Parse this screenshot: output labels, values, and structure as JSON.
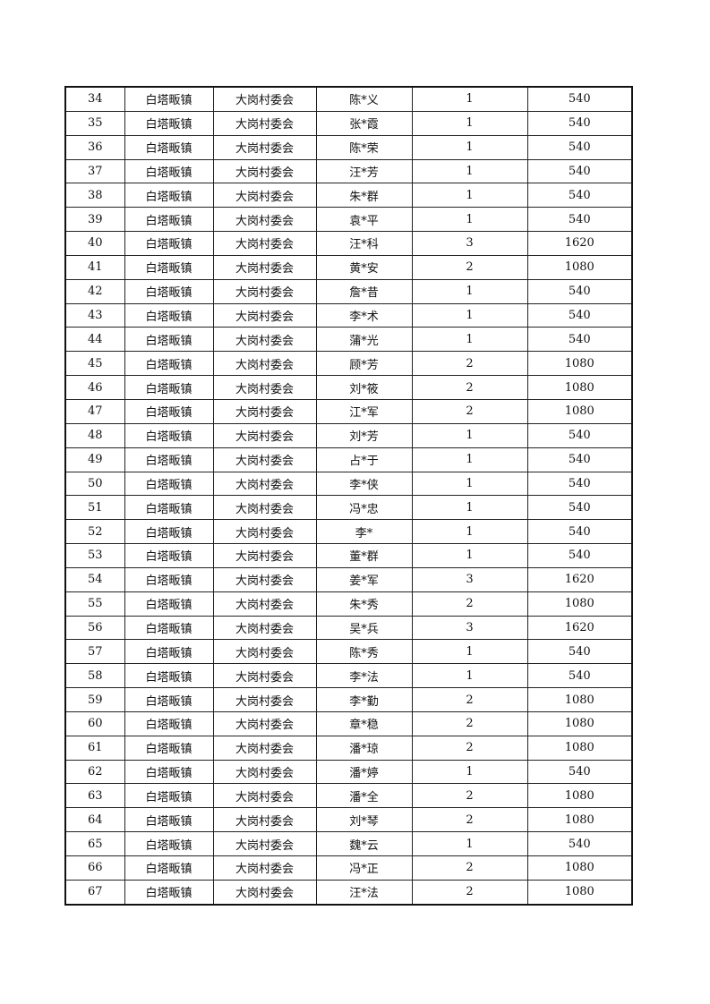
{
  "table": {
    "rows": [
      [
        "34",
        "白塔畈镇",
        "大岗村委会",
        "陈*义",
        "1",
        "540"
      ],
      [
        "35",
        "白塔畈镇",
        "大岗村委会",
        "张*霞",
        "1",
        "540"
      ],
      [
        "36",
        "白塔畈镇",
        "大岗村委会",
        "陈*荣",
        "1",
        "540"
      ],
      [
        "37",
        "白塔畈镇",
        "大岗村委会",
        "汪*芳",
        "1",
        "540"
      ],
      [
        "38",
        "白塔畈镇",
        "大岗村委会",
        "朱*群",
        "1",
        "540"
      ],
      [
        "39",
        "白塔畈镇",
        "大岗村委会",
        "袁*平",
        "1",
        "540"
      ],
      [
        "40",
        "白塔畈镇",
        "大岗村委会",
        "汪*科",
        "3",
        "1620"
      ],
      [
        "41",
        "白塔畈镇",
        "大岗村委会",
        "黄*安",
        "2",
        "1080"
      ],
      [
        "42",
        "白塔畈镇",
        "大岗村委会",
        "詹*昔",
        "1",
        "540"
      ],
      [
        "43",
        "白塔畈镇",
        "大岗村委会",
        "李*术",
        "1",
        "540"
      ],
      [
        "44",
        "白塔畈镇",
        "大岗村委会",
        "蒲*光",
        "1",
        "540"
      ],
      [
        "45",
        "白塔畈镇",
        "大岗村委会",
        "顾*芳",
        "2",
        "1080"
      ],
      [
        "46",
        "白塔畈镇",
        "大岗村委会",
        "刘*筱",
        "2",
        "1080"
      ],
      [
        "47",
        "白塔畈镇",
        "大岗村委会",
        "江*军",
        "2",
        "1080"
      ],
      [
        "48",
        "白塔畈镇",
        "大岗村委会",
        "刘*芳",
        "1",
        "540"
      ],
      [
        "49",
        "白塔畈镇",
        "大岗村委会",
        "占*于",
        "1",
        "540"
      ],
      [
        "50",
        "白塔畈镇",
        "大岗村委会",
        "李*侠",
        "1",
        "540"
      ],
      [
        "51",
        "白塔畈镇",
        "大岗村委会",
        "冯*忠",
        "1",
        "540"
      ],
      [
        "52",
        "白塔畈镇",
        "大岗村委会",
        "李*",
        "1",
        "540"
      ],
      [
        "53",
        "白塔畈镇",
        "大岗村委会",
        "董*群",
        "1",
        "540"
      ],
      [
        "54",
        "白塔畈镇",
        "大岗村委会",
        "姜*军",
        "3",
        "1620"
      ],
      [
        "55",
        "白塔畈镇",
        "大岗村委会",
        "朱*秀",
        "2",
        "1080"
      ],
      [
        "56",
        "白塔畈镇",
        "大岗村委会",
        "吴*兵",
        "3",
        "1620"
      ],
      [
        "57",
        "白塔畈镇",
        "大岗村委会",
        "陈*秀",
        "1",
        "540"
      ],
      [
        "58",
        "白塔畈镇",
        "大岗村委会",
        "李*法",
        "1",
        "540"
      ],
      [
        "59",
        "白塔畈镇",
        "大岗村委会",
        "李*勤",
        "2",
        "1080"
      ],
      [
        "60",
        "白塔畈镇",
        "大岗村委会",
        "章*稳",
        "2",
        "1080"
      ],
      [
        "61",
        "白塔畈镇",
        "大岗村委会",
        "潘*琼",
        "2",
        "1080"
      ],
      [
        "62",
        "白塔畈镇",
        "大岗村委会",
        "潘*婷",
        "1",
        "540"
      ],
      [
        "63",
        "白塔畈镇",
        "大岗村委会",
        "潘*全",
        "2",
        "1080"
      ],
      [
        "64",
        "白塔畈镇",
        "大岗村委会",
        "刘*琴",
        "2",
        "1080"
      ],
      [
        "65",
        "白塔畈镇",
        "大岗村委会",
        "魏*云",
        "1",
        "540"
      ],
      [
        "66",
        "白塔畈镇",
        "大岗村委会",
        "冯*正",
        "2",
        "1080"
      ],
      [
        "67",
        "白塔畈镇",
        "大岗村委会",
        "汪*法",
        "2",
        "1080"
      ]
    ]
  }
}
